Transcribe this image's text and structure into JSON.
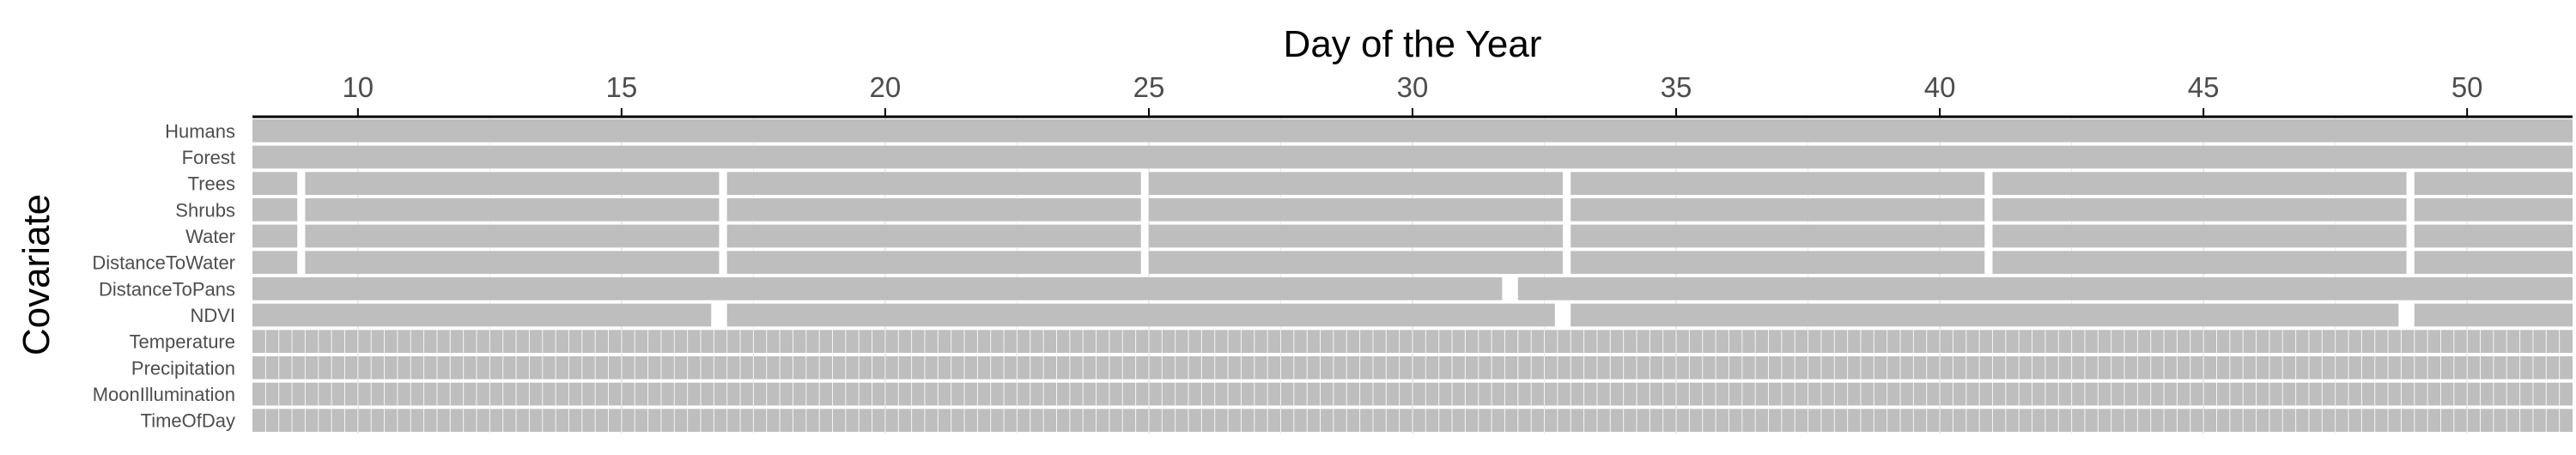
{
  "chart_data": {
    "type": "heatmap",
    "title": "",
    "xlabel": "Day of the Year",
    "ylabel": "Covariate",
    "xlim": [
      8,
      52
    ],
    "x_ticks": [
      "10",
      "15",
      "20",
      "25",
      "30",
      "35",
      "40",
      "45",
      "50"
    ],
    "grid": true,
    "legend": "none",
    "colors": {
      "tile": "#bebebe",
      "background": "#ffffff",
      "grid": "#ebebeb",
      "axis": "#000000"
    },
    "categories": [
      "Humans",
      "Forest",
      "Trees",
      "Shrubs",
      "Water",
      "DistanceToWater",
      "DistanceToPans",
      "NDVI",
      "Temperature",
      "Precipitation",
      "MoonIllumination",
      "TimeOfDay"
    ],
    "series": [
      {
        "category": "Humans",
        "resolution": "static",
        "segments": [
          [
            8,
            52
          ]
        ]
      },
      {
        "category": "Forest",
        "resolution": "static",
        "segments": [
          [
            8,
            52
          ]
        ]
      },
      {
        "category": "Trees",
        "resolution": "16-day",
        "segments": [
          [
            8,
            8.85
          ],
          [
            9.0,
            16.85
          ],
          [
            17.0,
            24.85
          ],
          [
            25.0,
            32.85
          ],
          [
            33.0,
            40.85
          ],
          [
            41.0,
            48.85
          ],
          [
            49.0,
            52
          ]
        ]
      },
      {
        "category": "Shrubs",
        "resolution": "16-day",
        "segments": [
          [
            8,
            8.85
          ],
          [
            9.0,
            16.85
          ],
          [
            17.0,
            24.85
          ],
          [
            25.0,
            32.85
          ],
          [
            33.0,
            40.85
          ],
          [
            41.0,
            48.85
          ],
          [
            49.0,
            52
          ]
        ]
      },
      {
        "category": "Water",
        "resolution": "16-day",
        "segments": [
          [
            8,
            8.85
          ],
          [
            9.0,
            16.85
          ],
          [
            17.0,
            24.85
          ],
          [
            25.0,
            32.85
          ],
          [
            33.0,
            40.85
          ],
          [
            41.0,
            48.85
          ],
          [
            49.0,
            52
          ]
        ]
      },
      {
        "category": "DistanceToWater",
        "resolution": "16-day",
        "segments": [
          [
            8,
            8.85
          ],
          [
            9.0,
            16.85
          ],
          [
            17.0,
            24.85
          ],
          [
            25.0,
            32.85
          ],
          [
            33.0,
            40.85
          ],
          [
            41.0,
            48.85
          ],
          [
            49.0,
            52
          ]
        ]
      },
      {
        "category": "DistanceToPans",
        "resolution": "once",
        "segments": [
          [
            8,
            31.7
          ],
          [
            32.0,
            52
          ]
        ]
      },
      {
        "category": "NDVI",
        "resolution": "16-day",
        "segments": [
          [
            8,
            16.7
          ],
          [
            17.0,
            32.7
          ],
          [
            33.0,
            48.7
          ],
          [
            49.0,
            52
          ]
        ]
      },
      {
        "category": "Temperature",
        "resolution": "hourly",
        "steps_per_day": 4,
        "segments": [
          [
            8,
            52
          ]
        ]
      },
      {
        "category": "Precipitation",
        "resolution": "hourly",
        "steps_per_day": 4,
        "segments": [
          [
            8,
            52
          ]
        ]
      },
      {
        "category": "MoonIllumination",
        "resolution": "hourly",
        "steps_per_day": 4,
        "segments": [
          [
            8,
            52
          ]
        ]
      },
      {
        "category": "TimeOfDay",
        "resolution": "hourly",
        "steps_per_day": 4,
        "segments": [
          [
            8,
            52
          ]
        ]
      }
    ]
  }
}
